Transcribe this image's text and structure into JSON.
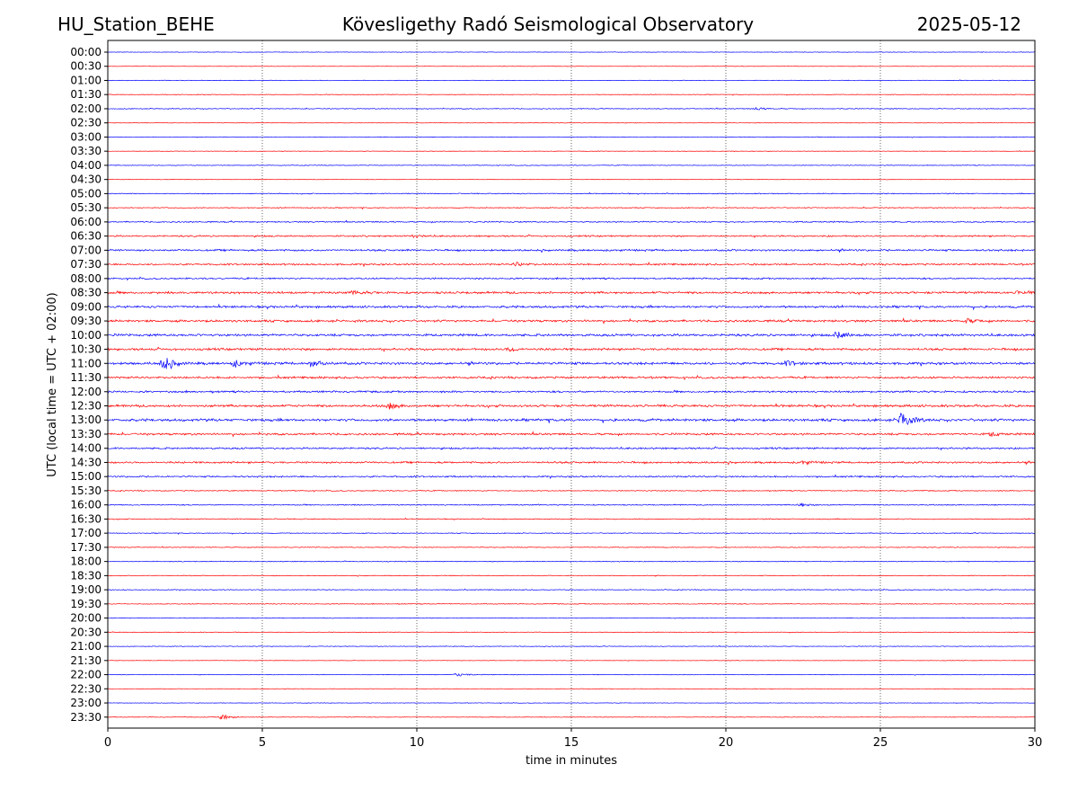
{
  "header": {
    "station": "HU_Station_BEHE",
    "title": "Kövesligethy Radó Seismological Observatory",
    "date": "2025-05-12"
  },
  "chart_data": {
    "type": "line",
    "title": "Kövesligethy Radó Seismological Observatory",
    "xlabel": "time in minutes",
    "ylabel": "UTC (local time = UTC + 02:00)",
    "xlim": [
      0,
      30
    ],
    "x_ticks": [
      0,
      5,
      10,
      15,
      20,
      25,
      30
    ],
    "vertical_gridlines": [
      5,
      10,
      15,
      20,
      25
    ],
    "y_ticks": [
      "00:00",
      "00:30",
      "01:00",
      "01:30",
      "02:00",
      "02:30",
      "03:00",
      "03:30",
      "04:00",
      "04:30",
      "05:00",
      "05:30",
      "06:00",
      "06:30",
      "07:00",
      "07:30",
      "08:00",
      "08:30",
      "09:00",
      "09:30",
      "10:00",
      "10:30",
      "11:00",
      "11:30",
      "12:00",
      "12:30",
      "13:00",
      "13:30",
      "14:00",
      "14:30",
      "15:00",
      "15:30",
      "16:00",
      "16:30",
      "17:00",
      "17:30",
      "18:00",
      "18:30",
      "19:00",
      "19:30",
      "20:00",
      "20:30",
      "21:00",
      "21:30",
      "22:00",
      "22:30",
      "23:00",
      "23:30"
    ],
    "trace_colors": [
      "#0000ff",
      "#ff0000"
    ],
    "noise_levels": [
      0.3,
      0.3,
      0.4,
      0.4,
      0.5,
      0.3,
      0.4,
      0.3,
      0.4,
      0.3,
      0.6,
      0.6,
      0.8,
      1.0,
      1.2,
      1.1,
      1.0,
      1.4,
      1.4,
      1.4,
      1.5,
      1.4,
      1.6,
      1.3,
      1.2,
      1.5,
      1.6,
      1.3,
      1.1,
      1.2,
      1.0,
      0.6,
      0.7,
      0.6,
      0.5,
      0.5,
      0.5,
      0.5,
      0.5,
      0.5,
      0.4,
      0.4,
      0.4,
      0.3,
      0.4,
      0.3,
      0.3,
      0.4
    ],
    "events": [
      {
        "trace": "02:00",
        "minute": 21.0,
        "amplitude": 1.5
      },
      {
        "trace": "06:30",
        "minute": 9.9,
        "amplitude": 1.5
      },
      {
        "trace": "07:30",
        "minute": 13.2,
        "amplitude": 2
      },
      {
        "trace": "08:30",
        "minute": 8.0,
        "amplitude": 2
      },
      {
        "trace": "08:30",
        "minute": 29.5,
        "amplitude": 2
      },
      {
        "trace": "09:30",
        "minute": 27.8,
        "amplitude": 2
      },
      {
        "trace": "10:00",
        "minute": 23.6,
        "amplitude": 4
      },
      {
        "trace": "10:30",
        "minute": 13.0,
        "amplitude": 2.5
      },
      {
        "trace": "11:00",
        "minute": 1.8,
        "amplitude": 8
      },
      {
        "trace": "11:00",
        "minute": 4.1,
        "amplitude": 3.5
      },
      {
        "trace": "11:00",
        "minute": 6.6,
        "amplitude": 3.5
      },
      {
        "trace": "11:00",
        "minute": 22.0,
        "amplitude": 2.5
      },
      {
        "trace": "12:30",
        "minute": 9.1,
        "amplitude": 3
      },
      {
        "trace": "13:00",
        "minute": 25.7,
        "amplitude": 10
      },
      {
        "trace": "13:30",
        "minute": 28.6,
        "amplitude": 2
      },
      {
        "trace": "14:30",
        "minute": 22.5,
        "amplitude": 2
      },
      {
        "trace": "16:00",
        "minute": 22.4,
        "amplitude": 2
      },
      {
        "trace": "22:00",
        "minute": 11.3,
        "amplitude": 2
      },
      {
        "trace": "23:30",
        "minute": 3.7,
        "amplitude": 3
      }
    ]
  }
}
